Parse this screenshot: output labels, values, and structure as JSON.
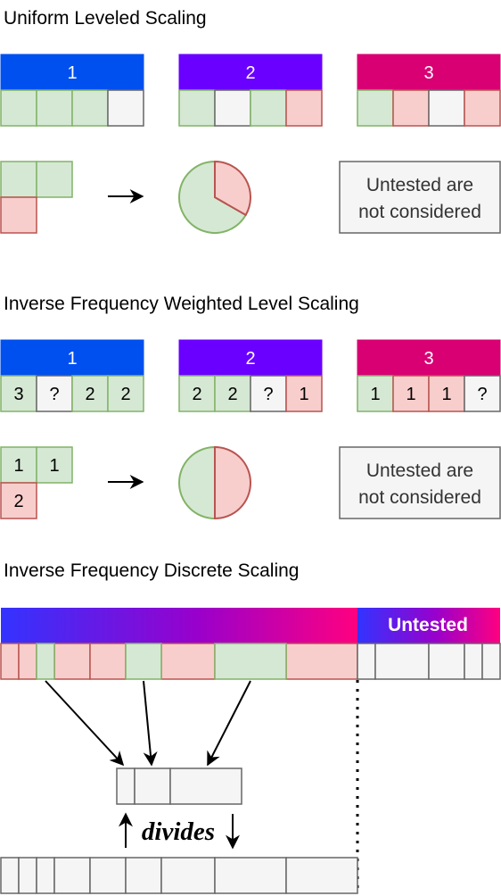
{
  "section1": {
    "title": "Uniform Leveled Scaling",
    "groups": [
      {
        "label": "1",
        "color": "#0050EF",
        "cells": [
          "g",
          "g",
          "g",
          "w"
        ],
        "values": [
          "",
          "",
          "",
          ""
        ]
      },
      {
        "label": "2",
        "color": "#6A00FF",
        "cells": [
          "g",
          "w",
          "g",
          "r"
        ],
        "values": [
          "",
          "",
          "",
          ""
        ]
      },
      {
        "label": "3",
        "color": "#D80073",
        "cells": [
          "g",
          "r",
          "w",
          "r"
        ],
        "values": [
          "",
          "",
          "",
          ""
        ]
      }
    ],
    "summary": {
      "top": [
        "g",
        "g"
      ],
      "bottom": [
        "r"
      ],
      "top_values": [
        "",
        ""
      ],
      "bottom_values": [
        ""
      ]
    },
    "pie": {
      "green_fraction": 0.667,
      "red_fraction": 0.333
    },
    "note_lines": [
      "Untested are",
      "not considered"
    ]
  },
  "section2": {
    "title": "Inverse Frequency Weighted Level Scaling",
    "groups": [
      {
        "label": "1",
        "color": "#0050EF",
        "cells": [
          "g",
          "w",
          "g",
          "g"
        ],
        "values": [
          "3",
          "?",
          "2",
          "2"
        ]
      },
      {
        "label": "2",
        "color": "#6A00FF",
        "cells": [
          "g",
          "g",
          "w",
          "r"
        ],
        "values": [
          "2",
          "2",
          "?",
          "1"
        ]
      },
      {
        "label": "3",
        "color": "#D80073",
        "cells": [
          "g",
          "r",
          "r",
          "w"
        ],
        "values": [
          "1",
          "1",
          "1",
          "?"
        ]
      }
    ],
    "summary": {
      "top": [
        "g",
        "g"
      ],
      "bottom": [
        "r"
      ],
      "top_values": [
        "1",
        "1"
      ],
      "bottom_values": [
        "2"
      ]
    },
    "pie": {
      "green_fraction": 0.5,
      "red_fraction": 0.5
    },
    "note_lines": [
      "Untested are",
      "not considered"
    ]
  },
  "section3": {
    "title": "Inverse Frequency Discrete Scaling",
    "untested_label": "Untested",
    "label": "divides"
  },
  "colors": {
    "green_fill": "#D5E8D4",
    "green_stroke": "#82B366",
    "red_fill": "#F8CECC",
    "red_stroke": "#B85450",
    "gray_fill": "#F5F5F5",
    "gray_stroke": "#666666",
    "gradient_start": "#3333FF",
    "gradient_mid": "#9900CC",
    "gradient_end": "#FF0080"
  }
}
